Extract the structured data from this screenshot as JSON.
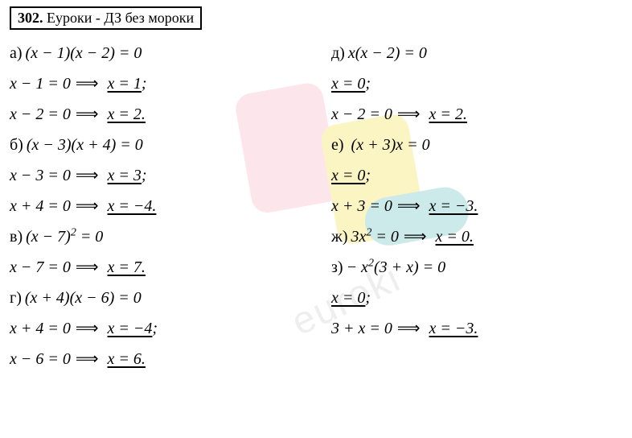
{
  "header": {
    "number": "302.",
    "title": "Еуроки - ДЗ без мороки"
  },
  "watermark_text": "euroki",
  "colors": {
    "background": "#ffffff",
    "text": "#000000",
    "border": "#000000",
    "wm_pink": "#f8b8c8",
    "wm_yellow": "#f5e055",
    "wm_teal": "#6fc5c5",
    "wm_text": "#d0d0d0"
  },
  "typography": {
    "body_fontsize": 20,
    "header_fontsize": 18,
    "font_family": "Georgia, Times New Roman, serif",
    "font_style": "italic"
  },
  "left": {
    "a": {
      "label": "а)",
      "eq": "(x − 1)(x − 2) = 0",
      "s1a": "x − 1 = 0",
      "s1b": "x = 1",
      "p1": ";",
      "s2a": "x − 2 = 0",
      "s2b": "x = 2.",
      "p2": ""
    },
    "b": {
      "label": "б)",
      "eq": "(x − 3)(x + 4) = 0",
      "s1a": "x − 3 = 0",
      "s1b": "x = 3",
      "p1": ";",
      "s2a": "x + 4 = 0",
      "s2b": "x = −4.",
      "p2": ""
    },
    "v": {
      "label": "в)",
      "eq_a": "(x − 7)",
      "eq_b": " = 0",
      "s1a": "x − 7 = 0",
      "s1b": "x = 7.",
      "p1": ""
    },
    "g": {
      "label": "г)",
      "eq": "(x + 4)(x − 6) = 0",
      "s1a": "x + 4 = 0",
      "s1b": "x = −4",
      "p1": ";",
      "s2a": "x − 6 = 0",
      "s2b": "x = 6.",
      "p2": ""
    }
  },
  "right": {
    "d": {
      "label": "д)",
      "eq": "x(x − 2) = 0",
      "s1b": "x = 0",
      "p1": ";",
      "s2a": "x − 2 = 0",
      "s2b": "x = 2.",
      "p2": ""
    },
    "e": {
      "label": "е)",
      "eq": " (x + 3)x = 0",
      "s1b": "x = 0",
      "p1": ";",
      "s2a": "x + 3 = 0",
      "s2b": "x = −3.",
      "p2": ""
    },
    "zh": {
      "label": "ж)",
      "eq_a": "3x",
      "eq_b": " = 0",
      "s1b": "x = 0.",
      "p1": ""
    },
    "z": {
      "label": "з)",
      "eq_a": "− x",
      "eq_b": "(3 + x) = 0",
      "s1b": "x = 0",
      "p1": ";",
      "s2a": "3 + x = 0",
      "s2b": "x = −3.",
      "p2": ""
    }
  }
}
